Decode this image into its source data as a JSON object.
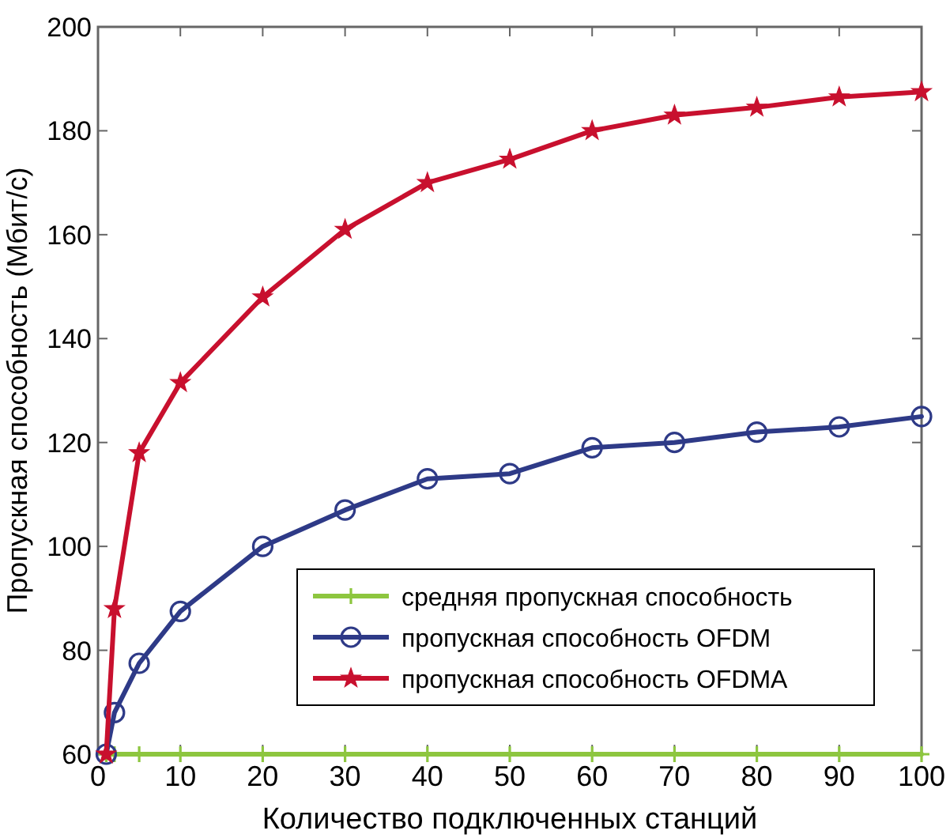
{
  "chart_data": {
    "type": "line",
    "xlabel": "Количество подключенных станций",
    "ylabel": "Пропускная способность (Мбит/с)",
    "xlim": [
      0,
      100
    ],
    "xticks": [
      0,
      10,
      20,
      30,
      40,
      50,
      60,
      70,
      80,
      90,
      100
    ],
    "ylim": [
      60,
      200
    ],
    "yticks": [
      60,
      80,
      100,
      120,
      140,
      160,
      180,
      200
    ],
    "grid": false,
    "legend": "bottom right",
    "line_style": "solid",
    "x": [
      1,
      2,
      5,
      10,
      20,
      30,
      40,
      50,
      60,
      70,
      80,
      90,
      100
    ],
    "series": [
      {
        "name": "средняя пропускная способность",
        "color": "#8dc63f",
        "marker": "cross",
        "values": [
          60,
          60,
          60,
          60,
          60,
          60,
          60,
          60,
          60,
          60,
          60,
          60,
          60
        ]
      },
      {
        "name": "пропускная способность OFDM",
        "color": "#2e3a87",
        "marker": "circle",
        "values": [
          60,
          68,
          77.5,
          87.5,
          100,
          107,
          113,
          114,
          119,
          120,
          122,
          123,
          125
        ]
      },
      {
        "name": "пропускная способность OFDMA",
        "color": "#c8102e",
        "marker": "star",
        "values": [
          60,
          88,
          118,
          131.5,
          148,
          161,
          170,
          174.5,
          180,
          183,
          184.5,
          186.5,
          187.5
        ]
      }
    ]
  }
}
